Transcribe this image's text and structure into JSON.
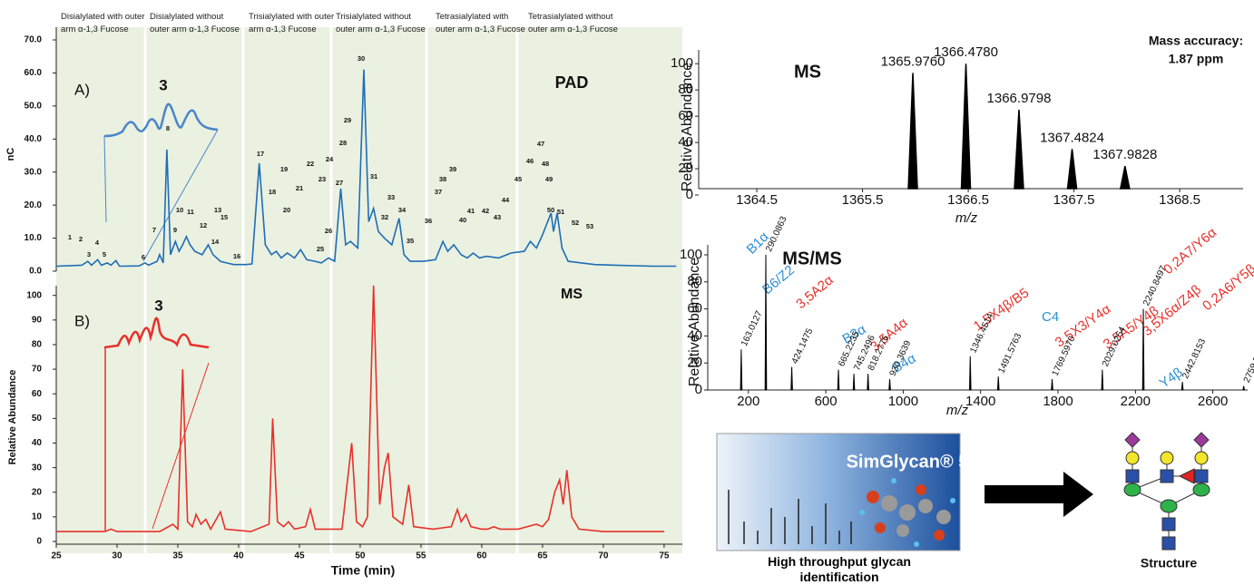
{
  "chart_data": [
    {
      "type": "line",
      "panel_label": "A)",
      "title": "PAD",
      "ylabel": "nC",
      "inset_label": "3",
      "region_labels": [
        "Disialylated with outer arm α-1,3 Fucose",
        "Disialylated without outer arm α-1,3 Fucose",
        "Trisialylated with outer arm α-1,3 Fucose",
        "Trisialylated without outer arm α-1,3 Fucose",
        "Tetrasialylated with outer arm α-1,3 Fucose",
        "Tetrasialylated without outer arm α-1,3 Fucose"
      ],
      "peak_labels": [
        "1",
        "2",
        "3",
        "4",
        "5",
        "6",
        "7",
        "8",
        "9",
        "10",
        "11",
        "12",
        "13",
        "14",
        "15",
        "16",
        "17",
        "18",
        "19",
        "20",
        "21",
        "22",
        "23",
        "24",
        "25",
        "26",
        "27",
        "28",
        "29",
        "30",
        "31",
        "32",
        "33",
        "34",
        "35",
        "36",
        "37",
        "38",
        "39",
        "40",
        "41",
        "42",
        "43",
        "44",
        "45",
        "46",
        "47",
        "48",
        "49",
        "50",
        "51",
        "52",
        "53"
      ],
      "xlim": [
        25,
        76.5
      ],
      "ylim": [
        0,
        70
      ],
      "yticks": [
        {
          "value": 0,
          "label": "0.0"
        },
        {
          "value": 10,
          "label": "10.0"
        },
        {
          "value": 20,
          "label": "20.0"
        },
        {
          "value": 30,
          "label": "30.0"
        },
        {
          "value": 40,
          "label": "40.0"
        },
        {
          "value": 50,
          "label": "50.0"
        },
        {
          "value": 60,
          "label": "60.0"
        },
        {
          "value": 70,
          "label": "70.0"
        }
      ],
      "x": [
        25,
        27.1,
        27.6,
        27.9,
        28.4,
        28.7,
        29.2,
        29.5,
        29.9,
        30.2,
        31.8,
        32.3,
        32.6,
        33.3,
        33.5,
        33.8,
        34.1,
        34.4,
        34.8,
        35.1,
        35.4,
        35.7,
        36,
        36.4,
        37,
        37.5,
        37.9,
        38.5,
        39,
        39.6,
        40.6,
        41.1,
        41.7,
        42.2,
        42.7,
        43.1,
        43.5,
        44,
        44.6,
        45.1,
        45.6,
        46.3,
        46.8,
        47.4,
        47.9,
        48.4,
        48.8,
        49.2,
        49.8,
        50.3,
        50.7,
        51.1,
        51.5,
        52,
        52.6,
        53.2,
        53.6,
        54.1,
        55.2,
        56.2,
        56.8,
        57.2,
        57.7,
        58.3,
        58.8,
        59.3,
        59.8,
        60.4,
        61.4,
        62.4,
        63.5,
        64,
        64.5,
        65,
        65.7,
        65.9,
        66.2,
        66.6,
        67.1,
        68.2,
        69.3,
        71,
        74.1,
        76
      ],
      "series": [
        {
          "color": "#1f6db5",
          "values": [
            1.5,
            1.8,
            3,
            1.8,
            3.5,
            1.8,
            2.5,
            1.8,
            3.2,
            1.5,
            1.6,
            2.5,
            1.8,
            3,
            5,
            2.5,
            36.8,
            5,
            9,
            6,
            8,
            10.5,
            8,
            6,
            5,
            8,
            5,
            3,
            2.5,
            2,
            2,
            2.2,
            32.7,
            8,
            5,
            6,
            4,
            5.5,
            4,
            6.5,
            3.5,
            3,
            2.5,
            4,
            3,
            25,
            8,
            9,
            7,
            61,
            15,
            19,
            12,
            10,
            8,
            16,
            5,
            3,
            3,
            3.5,
            9,
            6,
            8,
            5,
            4,
            5.5,
            4,
            4.5,
            4,
            5.5,
            6,
            9,
            7,
            11,
            17.6,
            12,
            17.6,
            7,
            3,
            2.5,
            2,
            1.8,
            1.5,
            1.5
          ]
        }
      ]
    },
    {
      "type": "line",
      "panel_label": "B)",
      "title": "MS",
      "ylabel": "Relative Abundance",
      "xlabel": "Time (min)",
      "inset_label": "3",
      "xlim": [
        25,
        76.5
      ],
      "xticks": [
        25,
        30,
        35,
        40,
        45,
        50,
        55,
        60,
        65,
        70,
        75
      ],
      "ylim": [
        0,
        108
      ],
      "yticks": [
        0,
        10,
        20,
        30,
        40,
        50,
        60,
        70,
        80,
        90,
        100
      ],
      "x": [
        25,
        29,
        29.5,
        30,
        33.5,
        34.6,
        35,
        35.4,
        35.8,
        36.2,
        36.5,
        36.9,
        37.3,
        37.7,
        38.5,
        38.9,
        41,
        42.5,
        42.8,
        43.2,
        43.7,
        44.1,
        44.6,
        45.5,
        45.9,
        46.3,
        48.5,
        49.3,
        49.7,
        50.2,
        50.6,
        51.1,
        51.6,
        52,
        52.3,
        52.7,
        53.5,
        54,
        54.4,
        56,
        57.5,
        58,
        58.3,
        58.7,
        59.1,
        60,
        60.5,
        61,
        61.5,
        63,
        64.5,
        65,
        65.5,
        66,
        66.4,
        66.7,
        67,
        67.4,
        68,
        70,
        75
      ],
      "series": [
        {
          "color": "#e8302a",
          "values": [
            4,
            4,
            5,
            4,
            4,
            7,
            5,
            70,
            8,
            6,
            11,
            7,
            9,
            5,
            12,
            5,
            4,
            7,
            50,
            8,
            6,
            8,
            5,
            6,
            13,
            5,
            5,
            40,
            8,
            6,
            10,
            104,
            15,
            30,
            36,
            10,
            7,
            23,
            6,
            5,
            6,
            13,
            8,
            11,
            6,
            5,
            5,
            6,
            5,
            5,
            7,
            6,
            9,
            20,
            25,
            15,
            29,
            10,
            5,
            4,
            4
          ]
        }
      ]
    },
    {
      "type": "spectrum",
      "title": "MS",
      "ylabel": "Relative Abundance",
      "xlabel": "m/z",
      "annotations": [
        "Mass accuracy:",
        "1.87 ppm"
      ],
      "color": "#000000",
      "xlim": [
        1363.95,
        1369.1
      ],
      "xticks": [
        1364.5,
        1365.5,
        1366.5,
        1367.5,
        1368.5
      ],
      "ylim": [
        0,
        105
      ],
      "yticks": [
        0,
        20,
        40,
        60,
        80,
        100
      ],
      "x": [
        1365.976,
        1366.478,
        1366.9798,
        1367.4824,
        1367.9828
      ],
      "values": [
        93,
        100,
        65,
        35,
        22
      ],
      "peak_labels": [
        "1365.9760",
        "1366.4780",
        "1366.9798",
        "1367.4824",
        "1367.9828"
      ]
    },
    {
      "type": "spectrum",
      "title": "MS/MS",
      "ylabel": "Relative Abundance",
      "xlabel": "m/z",
      "color": "#000000",
      "xlim": [
        -10,
        2780
      ],
      "xticks": [
        200,
        600,
        1000,
        1400,
        1800,
        2200,
        2600
      ],
      "ylim": [
        0,
        104
      ],
      "yticks": [
        0,
        20,
        40,
        60,
        80,
        100
      ],
      "x": [
        163.0127,
        290.0863,
        424.1475,
        665.2235,
        745.2496,
        818.2776,
        930.3639,
        1346.4514,
        1491.5763,
        1769.597,
        2029.0254,
        2240.8497,
        2442.8153,
        2759.5772
      ],
      "values": [
        30,
        100,
        17,
        15,
        12,
        12,
        8,
        25,
        10,
        8,
        15,
        60,
        6,
        3
      ],
      "peak_labels": [
        "163.0127",
        "290.0863",
        "424.1475",
        "665.2235",
        "745.2496",
        "818.2776",
        "930.3639",
        "1346.4514",
        "1491.5763",
        "1769.5970",
        "2029.0254",
        "2240.8497",
        "2442.8153",
        "2759.5772"
      ],
      "fragments": [
        {
          "label": "B1α",
          "color": "#2d8fd4"
        },
        {
          "label": "B6/Z2",
          "color": "#2d8fd4"
        },
        {
          "label": "3,5A2α",
          "color": "#e8302a"
        },
        {
          "label": "B3α",
          "color": "#2d8fd4"
        },
        {
          "label": "3,5A4α",
          "color": "#e8302a"
        },
        {
          "label": "B4α",
          "color": "#2d8fd4"
        },
        {
          "label": "1,5X4β/B5",
          "color": "#e8302a"
        },
        {
          "label": "C4",
          "color": "#2d8fd4"
        },
        {
          "label": "3,5X3/Y4α",
          "color": "#e8302a"
        },
        {
          "label": "3,5A5/Y4β",
          "color": "#e8302a"
        },
        {
          "label": "3,5X6α/Z4β",
          "color": "#e8302a"
        },
        {
          "label": "0,2A7/Y6α",
          "color": "#e8302a"
        },
        {
          "label": "0,2A6/Y5β",
          "color": "#e8302a"
        },
        {
          "label": "Y4β",
          "color": "#2d8fd4"
        }
      ]
    }
  ],
  "software": {
    "name": "SimGlycan® 5",
    "caption": "High throughput glycan identification"
  },
  "structure_label": "Structure"
}
